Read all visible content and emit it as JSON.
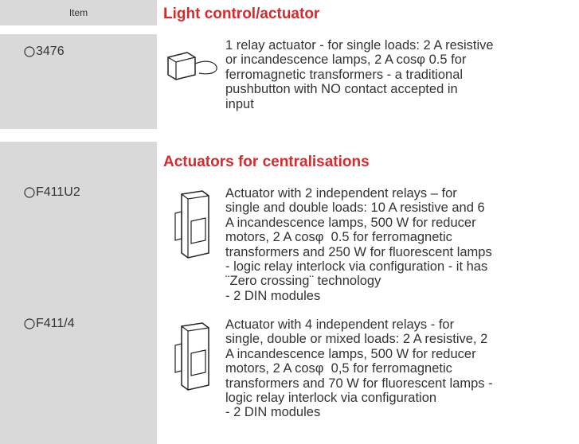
{
  "header": {
    "item_label": "Item"
  },
  "sections": [
    {
      "title": "Light control/actuator",
      "items": [
        {
          "code": "3476",
          "description": [
            "1 relay actuator - for single loads: 2 A resistive",
            "or incandescence lamps, 2 A cosφ 0.5 for",
            "ferromagnetic transformers - a traditional",
            "pushbutton with NO contact accepted in",
            "input"
          ]
        }
      ]
    },
    {
      "title": "Actuators for centralisations",
      "items": [
        {
          "code": "F411U2",
          "description": [
            "Actuator with 2 independent relays – for",
            "single and double loads: 10 A resistive and 6",
            "A incandescence lamps, 500 W for reducer",
            "motors, 2 A cosφ  0.5 for ferromagnetic",
            "transformers and 250 W for fluorescent lamps",
            "- logic relay interlock via configuration - it has",
            "¨Zero crossing¨ technology",
            "- 2 DIN modules"
          ]
        },
        {
          "code": "F411/4",
          "description": [
            "Actuator with 4 independent relays - for",
            "single, double or mixed loads: 2 A resistive, 2",
            "A incandescence lamps, 500 W for reducer",
            "motors, 2 A cosφ  0,5 for ferromagnetic",
            "transformers and 70 W for fluorescent lamps -",
            "logic relay interlock via configuration",
            "- 2 DIN modules"
          ]
        }
      ]
    }
  ]
}
